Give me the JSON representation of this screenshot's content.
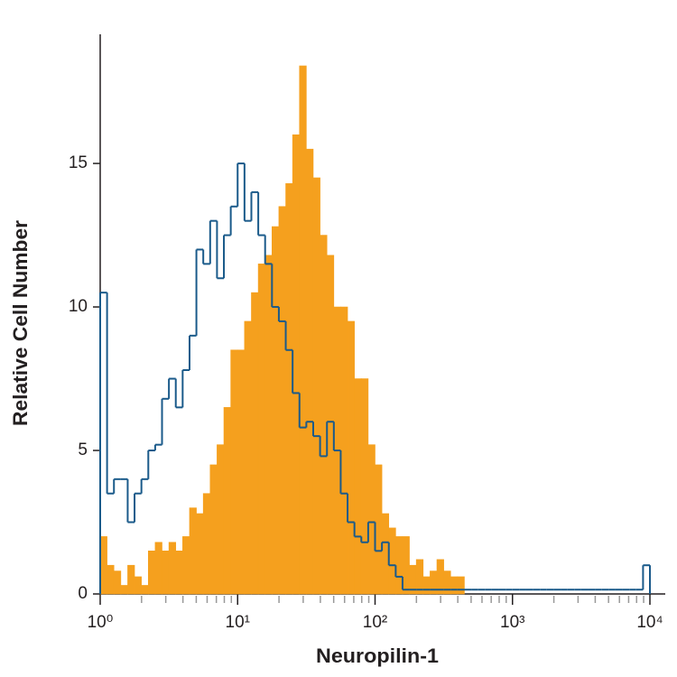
{
  "chart_data": {
    "type": "histogram",
    "x_label": "Neuropilin-1",
    "y_label": "Relative Cell Number",
    "xscale": "log",
    "bins": [
      1,
      1.122,
      1.259,
      1.413,
      1.585,
      1.778,
      1.995,
      2.239,
      2.512,
      2.818,
      3.162,
      3.548,
      3.981,
      4.467,
      5.012,
      5.623,
      6.31,
      7.079,
      7.943,
      8.913,
      10,
      11.22,
      12.59,
      14.13,
      15.85,
      17.78,
      19.95,
      22.39,
      25.12,
      28.18,
      31.62,
      35.48,
      39.81,
      44.67,
      50.12,
      56.23,
      63.1,
      70.79,
      79.43,
      89.13,
      100,
      112.2,
      125.9,
      141.3,
      158.5,
      177.8,
      199.5,
      223.9,
      251.2,
      281.8,
      316.2,
      354.8,
      398.1,
      446.7,
      501.2,
      562.3,
      631,
      707.9,
      794.3,
      891.3,
      1000,
      1122,
      1259,
      1413,
      1585,
      1778,
      1995,
      2239,
      2512,
      2818,
      3162,
      3548,
      3981,
      4467,
      5012,
      5623,
      6310,
      7079,
      7943,
      8913,
      10000
    ],
    "series": [
      {
        "color": "#f5a01e",
        "fill": true,
        "values": [
          2,
          1,
          0.8,
          0.3,
          1,
          0.6,
          0.3,
          1.5,
          1.8,
          1.5,
          1.8,
          1.5,
          2,
          3,
          2.8,
          3.5,
          4.5,
          5.2,
          6.5,
          8.5,
          8.5,
          9.5,
          10.5,
          11.5,
          11.8,
          12.8,
          13.5,
          14.3,
          16,
          18.4,
          15.5,
          14.5,
          12.5,
          11.8,
          10,
          10,
          9.5,
          7.5,
          7.5,
          5.2,
          4.5,
          2.8,
          2.3,
          2,
          2,
          1,
          1.2,
          0.6,
          0.8,
          1.2,
          0.8,
          0.6,
          0.6,
          0,
          0,
          0,
          0,
          0,
          0,
          0,
          0,
          0,
          0,
          0,
          0,
          0,
          0,
          0,
          0,
          0,
          0,
          0,
          0,
          0,
          0,
          0,
          0,
          0,
          0,
          0
        ]
      },
      {
        "color": "#1a5a8a",
        "fill": false,
        "values": [
          10.5,
          3.5,
          4,
          4,
          2.5,
          3.5,
          4,
          5,
          5.2,
          6.8,
          7.5,
          6.5,
          7.8,
          9,
          12,
          11.5,
          13,
          11,
          12.5,
          13.5,
          15,
          13,
          14,
          12.5,
          11.5,
          10,
          9.5,
          8.5,
          7,
          5.8,
          6,
          5.5,
          4.8,
          6,
          5,
          3.5,
          2.5,
          2,
          1.8,
          2.5,
          1.5,
          1.8,
          1,
          0.6,
          0.15,
          0.15,
          0.15,
          0.15,
          0.15,
          0.15,
          0.15,
          0.15,
          0.15,
          0.15,
          0.15,
          0.15,
          0.15,
          0.15,
          0.15,
          0.15,
          0.15,
          0.15,
          0.15,
          0.15,
          0.15,
          0.15,
          0.15,
          0.15,
          0.15,
          0.15,
          0.15,
          0.15,
          0.15,
          0.15,
          0.15,
          0.15,
          0.15,
          0.15,
          0.15,
          1
        ]
      }
    ],
    "xlim": [
      1,
      10000
    ],
    "xticks": [
      {
        "value": 1,
        "label": "10⁰"
      },
      {
        "value": 10,
        "label": "10¹"
      },
      {
        "value": 100,
        "label": "10²"
      },
      {
        "value": 1000,
        "label": "10³"
      },
      {
        "value": 10000,
        "label": "10⁴"
      }
    ],
    "xminorticks": [
      2,
      3,
      4,
      5,
      6,
      7,
      8,
      9,
      20,
      30,
      40,
      50,
      60,
      70,
      80,
      90,
      200,
      300,
      400,
      500,
      600,
      700,
      800,
      900,
      2000,
      3000,
      4000,
      5000,
      6000,
      7000,
      8000,
      9000
    ],
    "ylim": [
      0,
      19.5
    ],
    "yticks": [
      0,
      5,
      10,
      15
    ]
  }
}
